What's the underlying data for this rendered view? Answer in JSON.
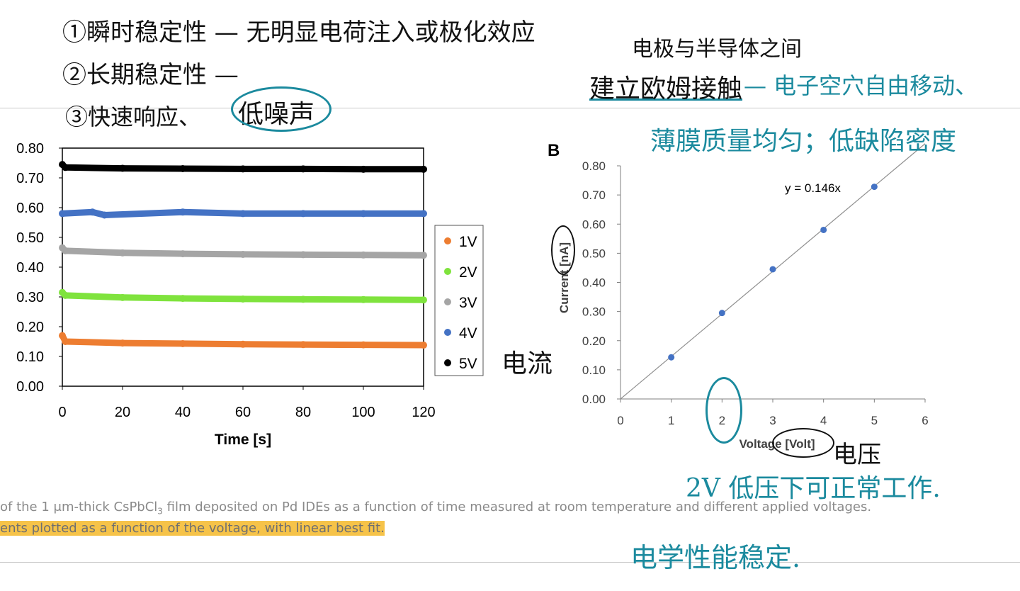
{
  "caption": {
    "line1_pre": "of the 1 μm-thick CsPbCl",
    "line1_sub": "3",
    "line1_post": " film deposited on Pd IDEs as a function of time measured at room temperature and different applied voltages.",
    "line2": "ents plotted as a function of the voltage, with linear best fit."
  },
  "notes": {
    "n1": "①瞬时稳定性 — 无明显电荷注入或极化效应",
    "n2": "②长期稳定性 —",
    "n3a": "③快速响应、",
    "n3b": "低噪声",
    "n4": "电极与半导体之间",
    "n5a": "建立欧姆接触",
    "n5b": " — 电子空穴自由移动、",
    "n6": "薄膜质量均匀；低缺陷密度",
    "n7": "电流",
    "n8": "电压",
    "n9": "2V 低压下可正常工作.",
    "n10": "电学性能稳定."
  },
  "colors": {
    "s1": "#ed7d31",
    "s2": "#7fe33d",
    "s3": "#a5a5a5",
    "s4": "#4472c4",
    "s5": "#000000",
    "annotation_teal": "#1b8a9e"
  },
  "chart_data": [
    {
      "type": "scatter",
      "title": "",
      "xlabel": "Time [s]",
      "ylabel": "",
      "xlim": [
        0,
        120
      ],
      "ylim": [
        0,
        0.8
      ],
      "xticks": [
        "0",
        "20",
        "40",
        "60",
        "80",
        "100",
        "120"
      ],
      "yticks": [
        "0.00",
        "0.10",
        "0.20",
        "0.30",
        "0.40",
        "0.50",
        "0.60",
        "0.70",
        "0.80"
      ],
      "legend_position": "right",
      "series": [
        {
          "name": "1V",
          "x": [
            0,
            1,
            20,
            40,
            60,
            80,
            100,
            120
          ],
          "values": [
            0.17,
            0.15,
            0.145,
            0.143,
            0.141,
            0.14,
            0.139,
            0.138
          ]
        },
        {
          "name": "2V",
          "x": [
            0,
            1,
            20,
            40,
            60,
            80,
            100,
            120
          ],
          "values": [
            0.315,
            0.305,
            0.298,
            0.295,
            0.293,
            0.292,
            0.291,
            0.29
          ]
        },
        {
          "name": "3V",
          "x": [
            0,
            1,
            20,
            40,
            60,
            80,
            100,
            120
          ],
          "values": [
            0.465,
            0.455,
            0.448,
            0.445,
            0.443,
            0.442,
            0.441,
            0.44
          ]
        },
        {
          "name": "4V",
          "x": [
            0,
            10,
            14,
            40,
            60,
            80,
            100,
            120
          ],
          "values": [
            0.58,
            0.585,
            0.575,
            0.585,
            0.58,
            0.58,
            0.58,
            0.58
          ]
        },
        {
          "name": "5V",
          "x": [
            0,
            1,
            20,
            40,
            60,
            80,
            100,
            120
          ],
          "values": [
            0.745,
            0.735,
            0.732,
            0.731,
            0.73,
            0.73,
            0.729,
            0.729
          ]
        }
      ]
    },
    {
      "type": "scatter",
      "panel_label": "B",
      "title": "",
      "xlabel": "Voltage [Volt]",
      "ylabel": "Current [nA]",
      "xlim": [
        0,
        6
      ],
      "ylim": [
        0,
        0.8
      ],
      "xticks": [
        "0",
        "1",
        "2",
        "3",
        "4",
        "5",
        "6"
      ],
      "yticks": [
        "0.00",
        "0.10",
        "0.20",
        "0.30",
        "0.40",
        "0.50",
        "0.60",
        "0.70",
        "0.80"
      ],
      "x": [
        1,
        2,
        3,
        4,
        5
      ],
      "values": [
        0.143,
        0.295,
        0.445,
        0.58,
        0.728
      ],
      "fit": {
        "slope": 0.146,
        "label": "y = 0.146x"
      }
    }
  ]
}
